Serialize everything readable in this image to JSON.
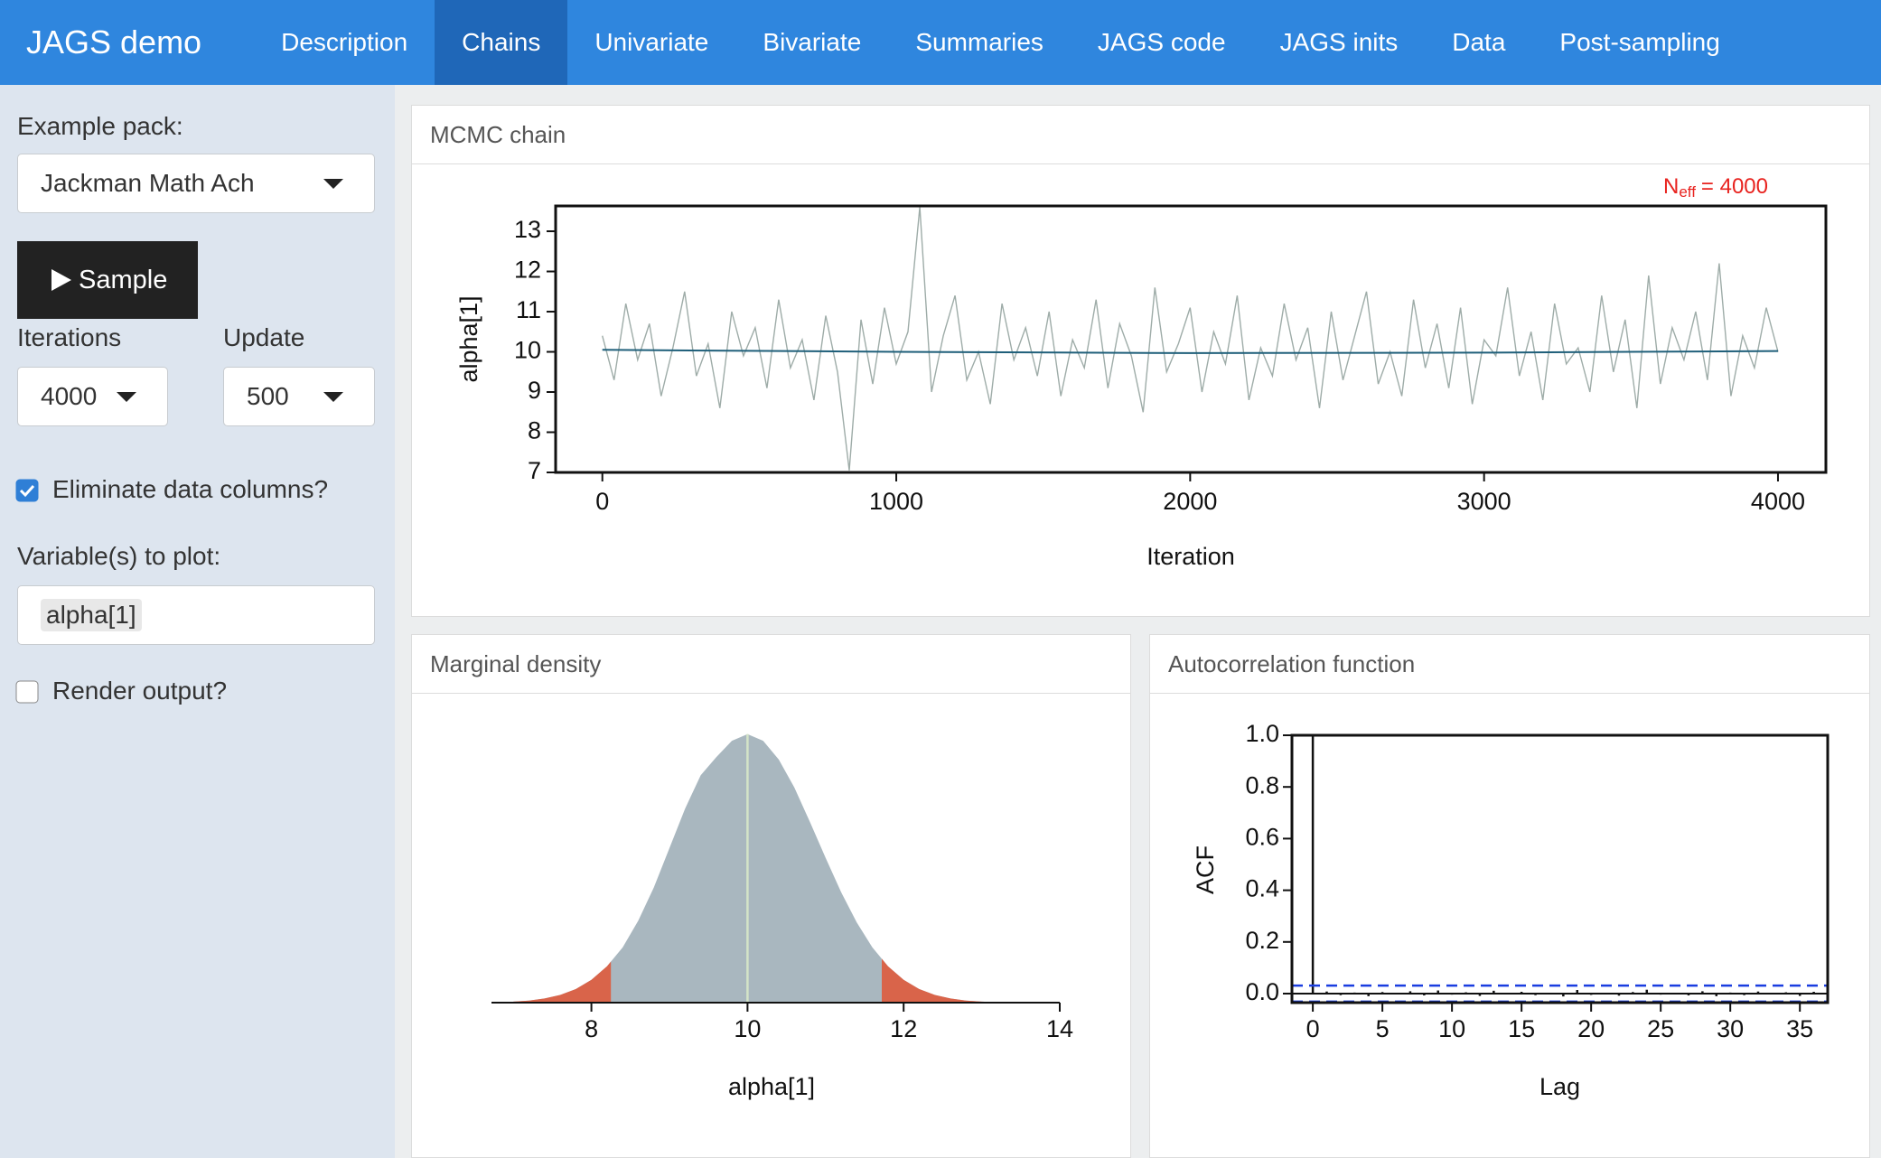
{
  "navbar": {
    "brand": "JAGS demo",
    "tabs": [
      "Description",
      "Chains",
      "Univariate",
      "Bivariate",
      "Summaries",
      "JAGS code",
      "JAGS inits",
      "Data",
      "Post-sampling"
    ],
    "active": 1
  },
  "sidebar": {
    "example_pack": {
      "label": "Example pack:",
      "value": "Jackman Math Ach"
    },
    "sample_button": "Sample",
    "iterations": {
      "label": "Iterations",
      "value": "4000"
    },
    "update": {
      "label": "Update",
      "value": "500"
    },
    "eliminate": {
      "label": "Eliminate data columns?",
      "checked": true
    },
    "variables": {
      "label": "Variable(s) to plot:",
      "values": [
        "alpha[1]"
      ]
    },
    "render": {
      "label": "Render output?",
      "checked": false
    }
  },
  "panels": [
    "MCMC chain",
    "Marginal density",
    "Autocorrelation function"
  ],
  "chart_data": [
    {
      "type": "line",
      "xlabel": "Iteration",
      "ylabel": "alpha[1]",
      "annotation": [
        "N",
        "eff",
        "= 4000"
      ],
      "annotation_color": "#e8231f",
      "xlim": [
        -159,
        4163
      ],
      "ylim": [
        7,
        13.63
      ],
      "xticks": [
        0,
        1000,
        2000,
        3000,
        4000
      ],
      "yticks": [
        7,
        8,
        9,
        10,
        11,
        12,
        13
      ],
      "series": [
        {
          "color": "#9eaca8",
          "x": [
            0,
            40,
            80,
            120,
            160,
            200,
            240,
            280,
            320,
            360,
            400,
            440,
            480,
            520,
            560,
            600,
            640,
            680,
            720,
            760,
            800,
            840,
            880,
            920,
            960,
            1000,
            1040,
            1080,
            1120,
            1160,
            1200,
            1240,
            1280,
            1320,
            1360,
            1400,
            1440,
            1480,
            1520,
            1560,
            1600,
            1640,
            1680,
            1720,
            1760,
            1800,
            1840,
            1880,
            1920,
            1960,
            2000,
            2040,
            2080,
            2120,
            2160,
            2200,
            2240,
            2280,
            2320,
            2360,
            2400,
            2440,
            2480,
            2520,
            2560,
            2600,
            2640,
            2680,
            2720,
            2760,
            2800,
            2840,
            2880,
            2920,
            2960,
            3000,
            3040,
            3080,
            3120,
            3160,
            3200,
            3240,
            3280,
            3320,
            3360,
            3400,
            3440,
            3480,
            3520,
            3560,
            3600,
            3640,
            3680,
            3720,
            3760,
            3800,
            3840,
            3880,
            3920,
            3960,
            4000
          ],
          "values": [
            10.4,
            9.3,
            11.2,
            9.8,
            10.7,
            8.9,
            10.1,
            11.5,
            9.4,
            10.2,
            8.6,
            11.0,
            9.9,
            10.6,
            9.1,
            11.3,
            9.6,
            10.3,
            8.8,
            10.9,
            9.5,
            7.05,
            10.8,
            9.2,
            11.1,
            9.7,
            10.5,
            13.6,
            9.0,
            10.4,
            11.4,
            9.3,
            10.0,
            8.7,
            11.2,
            9.8,
            10.6,
            9.4,
            11.0,
            8.9,
            10.3,
            9.6,
            11.3,
            9.1,
            10.7,
            9.9,
            8.5,
            11.6,
            9.5,
            10.2,
            11.1,
            9.0,
            10.5,
            9.7,
            11.4,
            8.8,
            10.1,
            9.4,
            11.2,
            9.8,
            10.6,
            8.6,
            11.0,
            9.3,
            10.4,
            11.5,
            9.2,
            10.0,
            8.9,
            11.3,
            9.6,
            10.7,
            9.1,
            11.1,
            8.7,
            10.3,
            9.9,
            11.6,
            9.4,
            10.5,
            8.8,
            11.2,
            9.7,
            10.1,
            9.0,
            11.4,
            9.5,
            10.8,
            8.6,
            11.9,
            9.2,
            10.6,
            9.8,
            11.0,
            9.3,
            12.2,
            8.9,
            10.4,
            9.6,
            11.1,
            10.0
          ]
        },
        {
          "color": "#1f5f7a",
          "x": [
            0,
            1000,
            2000,
            3000,
            4000
          ],
          "values": [
            10.05,
            10.0,
            9.97,
            9.98,
            10.02
          ]
        }
      ]
    },
    {
      "type": "area",
      "xlabel": "alpha[1]",
      "xlim": [
        6.72,
        14
      ],
      "ylim": [
        0,
        0.45
      ],
      "xticks": [
        8,
        10,
        12,
        14
      ],
      "color": "#a9b7bf",
      "tail_color": "#d9644a",
      "median_color": "#d4e4c8",
      "interval": [
        8.25,
        11.72
      ],
      "median": 10,
      "x": [
        7.0,
        7.2,
        7.4,
        7.6,
        7.8,
        8.0,
        8.2,
        8.4,
        8.6,
        8.8,
        9.0,
        9.2,
        9.4,
        9.6,
        9.8,
        10.0,
        10.2,
        10.4,
        10.6,
        10.8,
        11.0,
        11.2,
        11.4,
        11.6,
        11.8,
        12.0,
        12.2,
        12.4,
        12.6,
        12.8,
        13.0,
        13.2
      ],
      "values": [
        0.0017,
        0.0035,
        0.0068,
        0.0126,
        0.0223,
        0.0375,
        0.06,
        0.091,
        0.135,
        0.19,
        0.255,
        0.32,
        0.375,
        0.405,
        0.432,
        0.443,
        0.432,
        0.401,
        0.355,
        0.298,
        0.239,
        0.182,
        0.132,
        0.091,
        0.06,
        0.0375,
        0.0223,
        0.0126,
        0.0068,
        0.0035,
        0.0017,
        0.0008
      ]
    },
    {
      "type": "bar",
      "xlabel": "Lag",
      "ylabel": "ACF",
      "xlim": [
        -1.5,
        37
      ],
      "ylim": [
        -0.035,
        1
      ],
      "xticks": [
        0,
        5,
        10,
        15,
        20,
        25,
        30,
        35
      ],
      "yticks": [
        {
          "value": 0,
          "label": "0.0"
        },
        0.2,
        0.4,
        0.6,
        0.8,
        {
          "value": 1,
          "label": "1.0"
        }
      ],
      "color": "#111111",
      "band_color": "#1a3de0",
      "bands": [
        0.031,
        -0.031
      ],
      "x": [
        0,
        1,
        2,
        3,
        4,
        5,
        6,
        7,
        8,
        9,
        10,
        11,
        12,
        13,
        14,
        15,
        16,
        17,
        18,
        19,
        20,
        21,
        22,
        23,
        24,
        25,
        26,
        27,
        28,
        29,
        30,
        31,
        32,
        33,
        34,
        35,
        36,
        37
      ],
      "values": [
        1,
        0.008,
        -0.006,
        0.004,
        -0.01,
        0.006,
        -0.003,
        0.009,
        -0.007,
        0.012,
        -0.004,
        0.005,
        -0.009,
        0.011,
        -0.002,
        0.007,
        -0.006,
        0.003,
        -0.011,
        0.014,
        -0.005,
        0.002,
        -0.008,
        0.006,
        0.015,
        -0.004,
        0.003,
        -0.007,
        0.009,
        -0.01,
        0.004,
        -0.006,
        0.008,
        -0.003,
        0.005,
        -0.009,
        0.007,
        -0.004
      ]
    }
  ]
}
